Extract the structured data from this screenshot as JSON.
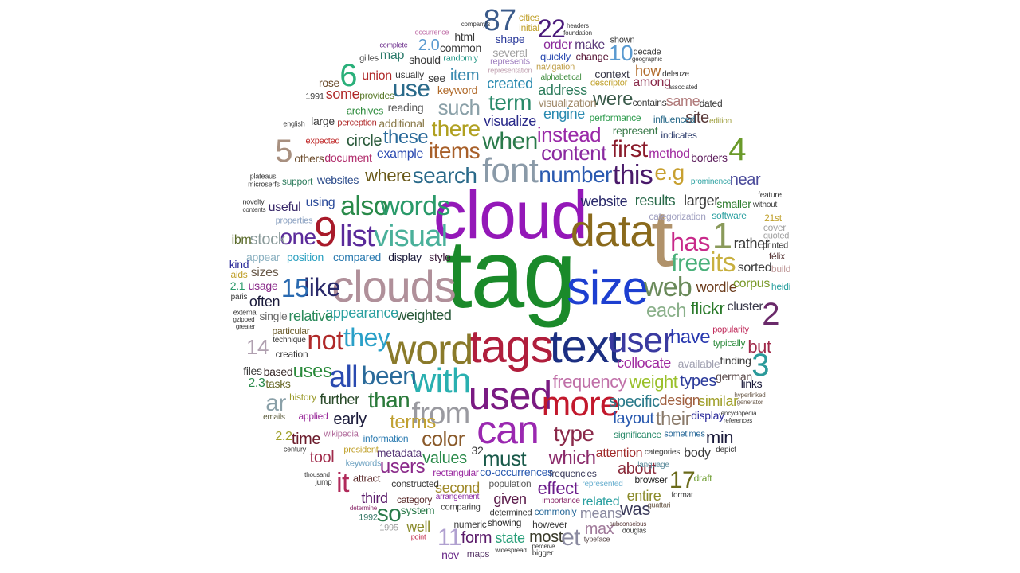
{
  "words": [
    {
      "text": "tag",
      "color": "#1a8a2a"
    },
    {
      "text": "cloud",
      "color": "#9418b8"
    },
    {
      "text": "tags",
      "color": "#b01e3c"
    },
    {
      "text": "text",
      "color": "#1c2f82"
    },
    {
      "text": "size",
      "color": "#1d3fd0"
    },
    {
      "text": "data",
      "color": "#8a6a1c"
    },
    {
      "text": "t",
      "color": "#b0926a"
    },
    {
      "text": "clouds",
      "color": "#b0909a"
    },
    {
      "text": "word",
      "color": "#8a7a2a"
    },
    {
      "text": "used",
      "color": "#7a1a82"
    },
    {
      "text": "can",
      "color": "#9a28b0"
    },
    {
      "text": "font",
      "color": "#8a9aa8"
    },
    {
      "text": "more",
      "color": "#c2182c"
    },
    {
      "text": "with",
      "color": "#2ab0b0"
    },
    {
      "text": "user",
      "color": "#3a3aa0"
    },
    {
      "text": "visual",
      "color": "#4ab09a"
    },
    {
      "text": "list",
      "color": "#5a2a9a"
    },
    {
      "text": "9",
      "color": "#a81a2a"
    },
    {
      "text": "also",
      "color": "#2a8a4a"
    },
    {
      "text": "words",
      "color": "#2a9a6a"
    },
    {
      "text": "web",
      "color": "#6a8a5a"
    },
    {
      "text": "has",
      "color": "#c82a8a"
    },
    {
      "text": "free",
      "color": "#4ab07a"
    },
    {
      "text": "its",
      "color": "#c8b040"
    },
    {
      "text": "1",
      "color": "#8a9a5a"
    },
    {
      "text": "from",
      "color": "#9a9aa0"
    },
    {
      "text": "all",
      "color": "#2a4ab0"
    },
    {
      "text": "been",
      "color": "#2a6a9a"
    },
    {
      "text": "they",
      "color": "#2aa0c8"
    },
    {
      "text": "not",
      "color": "#b02a2a"
    },
    {
      "text": "like",
      "color": "#2a2a6a"
    },
    {
      "text": "one",
      "color": "#5a2a9a"
    },
    {
      "text": "15",
      "color": "#2a6ab0"
    },
    {
      "text": "search",
      "color": "#2a6a8a"
    },
    {
      "text": "items",
      "color": "#a8602a"
    },
    {
      "text": "this",
      "color": "#4a1a6a"
    },
    {
      "text": "e.g",
      "color": "#c8a030"
    },
    {
      "text": "first",
      "color": "#8a1a2a"
    },
    {
      "text": "number",
      "color": "#2a5ab0"
    },
    {
      "text": "content",
      "color": "#8a2aa0"
    },
    {
      "text": "instead",
      "color": "#9a2aa8"
    },
    {
      "text": "when",
      "color": "#2a7a4a"
    },
    {
      "text": "5",
      "color": "#a89080"
    },
    {
      "text": "6",
      "color": "#2ab07a"
    },
    {
      "text": "4",
      "color": "#6a9a2a"
    },
    {
      "text": "2",
      "color": "#6a2a6a"
    },
    {
      "text": "3",
      "color": "#2a9a9a"
    },
    {
      "text": "87",
      "color": "#3a5a8a"
    },
    {
      "text": "22",
      "color": "#4a1a7a"
    },
    {
      "text": "10",
      "color": "#5a9ad0"
    },
    {
      "text": "17",
      "color": "#6a6a1a"
    },
    {
      "text": "14",
      "color": "#b0a0b0"
    },
    {
      "text": "11",
      "color": "#b0a0d0"
    },
    {
      "text": "than",
      "color": "#2a7a3a"
    },
    {
      "text": "terms",
      "color": "#c0a030"
    },
    {
      "text": "color",
      "color": "#8a5a2a"
    },
    {
      "text": "must",
      "color": "#1a5a4a"
    },
    {
      "text": "type",
      "color": "#8a2a4a"
    },
    {
      "text": "which",
      "color": "#8a2a6a"
    },
    {
      "text": "frequency",
      "color": "#c070a8"
    },
    {
      "text": "weight",
      "color": "#9ac02a"
    },
    {
      "text": "specific",
      "color": "#2a7a8a"
    },
    {
      "text": "layout",
      "color": "#2a5ab0"
    },
    {
      "text": "their",
      "color": "#8a7a6a"
    },
    {
      "text": "design",
      "color": "#a06040"
    },
    {
      "text": "similar",
      "color": "#a0a02a"
    },
    {
      "text": "types",
      "color": "#2a3a9a"
    },
    {
      "text": "collocate",
      "color": "#a02aa0"
    },
    {
      "text": "have",
      "color": "#2a3ab0"
    },
    {
      "text": "but",
      "color": "#a02a4a"
    },
    {
      "text": "weighted",
      "color": "#2a5a3a"
    },
    {
      "text": "appearance",
      "color": "#2aa0a0"
    },
    {
      "text": "relative",
      "color": "#2a8a5a"
    },
    {
      "text": "often",
      "color": "#1a1a3a"
    },
    {
      "text": "uses",
      "color": "#2a8a3a"
    },
    {
      "text": "ar",
      "color": "#8aa0a8"
    },
    {
      "text": "early",
      "color": "#1a1a3a"
    },
    {
      "text": "further",
      "color": "#2a4a2a"
    },
    {
      "text": "time",
      "color": "#6a1a2a"
    },
    {
      "text": "tool",
      "color": "#a02a4a"
    },
    {
      "text": "it",
      "color": "#b02a5a"
    },
    {
      "text": "so",
      "color": "#2a7a4a"
    },
    {
      "text": "well",
      "color": "#8a8a2a"
    },
    {
      "text": "users",
      "color": "#8a2a8a"
    },
    {
      "text": "values",
      "color": "#2a8a4a"
    },
    {
      "text": "second",
      "color": "#a08a2a"
    },
    {
      "text": "third",
      "color": "#5a1a6a"
    },
    {
      "text": "given",
      "color": "#5a1a4a"
    },
    {
      "text": "effect",
      "color": "#6a1a8a"
    },
    {
      "text": "et",
      "color": "#8a8aa0"
    },
    {
      "text": "most",
      "color": "#3a3a2a"
    },
    {
      "text": "form",
      "color": "#5a1a6a"
    },
    {
      "text": "state",
      "color": "#2aa07a"
    },
    {
      "text": "max",
      "color": "#a07a9a"
    },
    {
      "text": "was",
      "color": "#3a3a5a"
    },
    {
      "text": "means",
      "color": "#8a8aa0"
    },
    {
      "text": "entire",
      "color": "#8a8a2a"
    },
    {
      "text": "related",
      "color": "#2aa0a0"
    },
    {
      "text": "about",
      "color": "#8a2a3a"
    },
    {
      "text": "attention",
      "color": "#a02a2a"
    },
    {
      "text": "body",
      "color": "#3a3a3a"
    },
    {
      "text": "min",
      "color": "#1a1a3a"
    },
    {
      "text": "display",
      "color": "#2a2a9a"
    },
    {
      "text": "finding",
      "color": "#3a3a3a"
    },
    {
      "text": "links",
      "color": "#1a1a3a"
    },
    {
      "text": "german",
      "color": "#5a4a4a"
    },
    {
      "text": "cluster",
      "color": "#3a3a4a"
    },
    {
      "text": "flickr",
      "color": "#2a7a2a"
    },
    {
      "text": "each",
      "color": "#8ab08a"
    },
    {
      "text": "wordle",
      "color": "#6a3a1a"
    },
    {
      "text": "corpus",
      "color": "#7a9a2a"
    },
    {
      "text": "heidi",
      "color": "#2aa0a0"
    },
    {
      "text": "félix",
      "color": "#5a3a3a"
    },
    {
      "text": "sorted",
      "color": "#3a3a3a"
    },
    {
      "text": "rather",
      "color": "#3a3a3a"
    },
    {
      "text": "larger",
      "color": "#3a3a3a"
    },
    {
      "text": "smaller",
      "color": "#2a7a2a"
    },
    {
      "text": "near",
      "color": "#4a4a9a"
    },
    {
      "text": "results",
      "color": "#2a6a4a"
    },
    {
      "text": "website",
      "color": "#2a2a6a"
    },
    {
      "text": "software",
      "color": "#2aa0a0"
    },
    {
      "text": "categorization",
      "color": "#a0a0c0"
    },
    {
      "text": "were",
      "color": "#3a5a4a"
    },
    {
      "text": "site",
      "color": "#5a3a3a"
    },
    {
      "text": "same",
      "color": "#b07a7a"
    },
    {
      "text": "among",
      "color": "#8a2a4a"
    },
    {
      "text": "how",
      "color": "#b06a2a"
    },
    {
      "text": "context",
      "color": "#3a3a4a"
    },
    {
      "text": "method",
      "color": "#a02aa0"
    },
    {
      "text": "borders",
      "color": "#5a1a5a"
    },
    {
      "text": "represent",
      "color": "#3a7a4a"
    },
    {
      "text": "indicates",
      "color": "#2a3a6a"
    },
    {
      "text": "influenced",
      "color": "#2a6a8a"
    },
    {
      "text": "contains",
      "color": "#3a3a3a"
    },
    {
      "text": "dated",
      "color": "#3a3a3a"
    },
    {
      "text": "edition",
      "color": "#a0a040"
    },
    {
      "text": "performance",
      "color": "#2a9a4a"
    },
    {
      "text": "prominence",
      "color": "#2aa0a0"
    },
    {
      "text": "engine",
      "color": "#2a8ab0"
    },
    {
      "text": "address",
      "color": "#2a7a5a"
    },
    {
      "text": "visualization",
      "color": "#a08a6a"
    },
    {
      "text": "term",
      "color": "#2a8a6a"
    },
    {
      "text": "created",
      "color": "#2a8ab0"
    },
    {
      "text": "visualize",
      "color": "#2a2a8a"
    },
    {
      "text": "such",
      "color": "#8aa0a8"
    },
    {
      "text": "there",
      "color": "#b0a020"
    },
    {
      "text": "keyword",
      "color": "#b06a2a"
    },
    {
      "text": "item",
      "color": "#3a8ab0"
    },
    {
      "text": "use",
      "color": "#2a6a8a"
    },
    {
      "text": "these",
      "color": "#2a6a9a"
    },
    {
      "text": "circle",
      "color": "#2a5a3a"
    },
    {
      "text": "example",
      "color": "#2a4ab0"
    },
    {
      "text": "where",
      "color": "#6a5a1a"
    },
    {
      "text": "websites",
      "color": "#2a4a8a"
    },
    {
      "text": "using",
      "color": "#2a4a9a"
    },
    {
      "text": "useful",
      "color": "#3a2a6a"
    },
    {
      "text": "stock",
      "color": "#8a9a9a"
    },
    {
      "text": "ibm",
      "color": "#5a6a2a"
    },
    {
      "text": "position",
      "color": "#2aa0c0"
    },
    {
      "text": "compared",
      "color": "#2a7ab0"
    },
    {
      "text": "display",
      "color": "#1a1a3a"
    },
    {
      "text": "style",
      "color": "#3a1a3a"
    },
    {
      "text": "appear",
      "color": "#8ab0c0"
    },
    {
      "text": "sizes",
      "color": "#6a5a4a"
    },
    {
      "text": "usage",
      "color": "#8a2a8a"
    },
    {
      "text": "single",
      "color": "#6a6a6a"
    },
    {
      "text": "creation",
      "color": "#3a3a3a"
    },
    {
      "text": "technique",
      "color": "#3a3a3a"
    },
    {
      "text": "particular",
      "color": "#6a5a2a"
    },
    {
      "text": "based",
      "color": "#3a2a2a"
    },
    {
      "text": "tasks",
      "color": "#6a6a2a"
    },
    {
      "text": "files",
      "color": "#3a3a3a"
    },
    {
      "text": "history",
      "color": "#9a9a2a"
    },
    {
      "text": "applied",
      "color": "#9a2a9a"
    },
    {
      "text": "emails",
      "color": "#5a5a3a"
    },
    {
      "text": "wikipedia",
      "color": "#b06a9a"
    },
    {
      "text": "information",
      "color": "#2a7ab0"
    },
    {
      "text": "president",
      "color": "#c0a02a"
    },
    {
      "text": "metadata",
      "color": "#5a3a7a"
    },
    {
      "text": "keywords",
      "color": "#6aa0c0"
    },
    {
      "text": "attract",
      "color": "#5a2a2a"
    },
    {
      "text": "constructed",
      "color": "#3a3a3a"
    },
    {
      "text": "category",
      "color": "#5a2a2a"
    },
    {
      "text": "system",
      "color": "#2a7a4a"
    },
    {
      "text": "arrangement",
      "color": "#8a2aa0"
    },
    {
      "text": "rectangular",
      "color": "#9a2aa0"
    },
    {
      "text": "co-occurrences",
      "color": "#2a5ab0"
    },
    {
      "text": "population",
      "color": "#5a5a5a"
    },
    {
      "text": "frequencies",
      "color": "#3a3a5a"
    },
    {
      "text": "importance",
      "color": "#8a2a6a"
    },
    {
      "text": "commonly",
      "color": "#2a6a9a"
    },
    {
      "text": "showing",
      "color": "#2a2a2a"
    },
    {
      "text": "determined",
      "color": "#3a3a3a"
    },
    {
      "text": "however",
      "color": "#3a3a3a"
    },
    {
      "text": "numeric",
      "color": "#3a3a3a"
    },
    {
      "text": "comparing",
      "color": "#3a3a3a"
    },
    {
      "text": "represented",
      "color": "#6ab0d0"
    },
    {
      "text": "language",
      "color": "#5a8a9a"
    },
    {
      "text": "browser",
      "color": "#1a1a1a"
    },
    {
      "text": "categories",
      "color": "#3a3a3a"
    },
    {
      "text": "sometimes",
      "color": "#2a6a9a"
    },
    {
      "text": "significance",
      "color": "#2a8a6a"
    },
    {
      "text": "available",
      "color": "#a0a0b0"
    },
    {
      "text": "popularity",
      "color": "#c02a5a"
    },
    {
      "text": "typically",
      "color": "#2a8a3a"
    },
    {
      "text": "feature",
      "color": "#3a3a3a"
    },
    {
      "text": "without",
      "color": "#3a3a3a"
    },
    {
      "text": "21st",
      "color": "#c0a02a"
    },
    {
      "text": "cover",
      "color": "#a0a0a0"
    },
    {
      "text": "quoted",
      "color": "#a0a0a0"
    },
    {
      "text": "printed",
      "color": "#3a3a3a"
    },
    {
      "text": "build",
      "color": "#c09a9a"
    },
    {
      "text": "hyperlinked",
      "color": "#6a5a4a"
    },
    {
      "text": "generator",
      "color": "#6a5a4a"
    },
    {
      "text": "encyclopedia",
      "color": "#3a3a3a"
    },
    {
      "text": "references",
      "color": "#3a3a3a"
    },
    {
      "text": "depict",
      "color": "#3a3a3a"
    },
    {
      "text": "draft",
      "color": "#6a9a2a"
    },
    {
      "text": "format",
      "color": "#3a3a3a"
    },
    {
      "text": "guattari",
      "color": "#6a5a4a"
    },
    {
      "text": "subconscious",
      "color": "#5a3a3a"
    },
    {
      "text": "douglas",
      "color": "#3a3a3a"
    },
    {
      "text": "typeface",
      "color": "#5a4a4a"
    },
    {
      "text": "bigger",
      "color": "#3a3a3a"
    },
    {
      "text": "perceive",
      "color": "#3a3a3a"
    },
    {
      "text": "widespread",
      "color": "#3a3a3a"
    },
    {
      "text": "maps",
      "color": "#5a3a6a"
    },
    {
      "text": "nov",
      "color": "#6a2a8a"
    },
    {
      "text": "point",
      "color": "#c02a4a"
    },
    {
      "text": "1995",
      "color": "#a0a0a0"
    },
    {
      "text": "1992",
      "color": "#3a7a6a"
    },
    {
      "text": "determine",
      "color": "#8a2a6a"
    },
    {
      "text": "thousand",
      "color": "#3a3a3a"
    },
    {
      "text": "jump",
      "color": "#3a3a3a"
    },
    {
      "text": "century",
      "color": "#3a3a3a"
    },
    {
      "text": "2.2",
      "color": "#a0a02a"
    },
    {
      "text": "2.3",
      "color": "#2a8a4a"
    },
    {
      "text": "2.1",
      "color": "#2a9a6a"
    },
    {
      "text": "2.0",
      "color": "#5a9ad0"
    },
    {
      "text": "32",
      "color": "#3a3a3a"
    },
    {
      "text": "paris",
      "color": "#3a3a3a"
    },
    {
      "text": "external",
      "color": "#3a3a3a"
    },
    {
      "text": "gzipped",
      "color": "#3a3a3a"
    },
    {
      "text": "greater",
      "color": "#3a3a3a"
    },
    {
      "text": "kind",
      "color": "#2a2a9a"
    },
    {
      "text": "aids",
      "color": "#c0a02a"
    },
    {
      "text": "properties",
      "color": "#8aa0c0"
    },
    {
      "text": "novelty",
      "color": "#3a3a3a"
    },
    {
      "text": "contents",
      "color": "#3a3a3a"
    },
    {
      "text": "plateaus",
      "color": "#3a3a3a"
    },
    {
      "text": "microserfs",
      "color": "#3a3a3a"
    },
    {
      "text": "support",
      "color": "#2a7a5a"
    },
    {
      "text": "others",
      "color": "#6a4a2a"
    },
    {
      "text": "document",
      "color": "#b02a6a"
    },
    {
      "text": "expected",
      "color": "#c02a2a"
    },
    {
      "text": "english",
      "color": "#3a3a3a"
    },
    {
      "text": "large",
      "color": "#3a3a3a"
    },
    {
      "text": "perception",
      "color": "#b02a2a"
    },
    {
      "text": "additional",
      "color": "#8a7a4a"
    },
    {
      "text": "archives",
      "color": "#2a8a3a"
    },
    {
      "text": "reading",
      "color": "#5a5a5a"
    },
    {
      "text": "1991",
      "color": "#3a3a3a"
    },
    {
      "text": "some",
      "color": "#b02a2a"
    },
    {
      "text": "provides",
      "color": "#5a7a2a"
    },
    {
      "text": "rose",
      "color": "#6a4a2a"
    },
    {
      "text": "union",
      "color": "#b02a2a"
    },
    {
      "text": "usually",
      "color": "#3a3a3a"
    },
    {
      "text": "see",
      "color": "#3a3a3a"
    },
    {
      "text": "gilles",
      "color": "#3a3a3a"
    },
    {
      "text": "map",
      "color": "#2a7a6a"
    },
    {
      "text": "should",
      "color": "#3a3a3a"
    },
    {
      "text": "randomly",
      "color": "#2a9a8a"
    },
    {
      "text": "complete",
      "color": "#6a2a8a"
    },
    {
      "text": "occurrence",
      "color": "#c070a8"
    },
    {
      "text": "common",
      "color": "#3a3a3a"
    },
    {
      "text": "html",
      "color": "#3a3a3a"
    },
    {
      "text": "company's",
      "color": "#3a3a3a"
    },
    {
      "text": "shape",
      "color": "#2a3a9a"
    },
    {
      "text": "several",
      "color": "#a0a0a0"
    },
    {
      "text": "represents",
      "color": "#a080c0"
    },
    {
      "text": "representation",
      "color": "#c0a0b0"
    },
    {
      "text": "cities",
      "color": "#c0a02a"
    },
    {
      "text": "initial",
      "color": "#c0a02a"
    },
    {
      "text": "headers",
      "color": "#3a3a3a"
    },
    {
      "text": "foundation",
      "color": "#3a3a3a"
    },
    {
      "text": "order",
      "color": "#8a2a9a"
    },
    {
      "text": "make",
      "color": "#5a3a7a"
    },
    {
      "text": "quickly",
      "color": "#2a4ab0"
    },
    {
      "text": "change",
      "color": "#5a1a3a"
    },
    {
      "text": "navigation",
      "color": "#c0a04a"
    },
    {
      "text": "alphabetical",
      "color": "#3a8a3a"
    },
    {
      "text": "descriptor",
      "color": "#c0a02a"
    },
    {
      "text": "shown",
      "color": "#3a3a3a"
    },
    {
      "text": "decade",
      "color": "#3a3a3a"
    },
    {
      "text": "geographic",
      "color": "#3a3a3a"
    },
    {
      "text": "deleuze",
      "color": "#3a3a3a"
    },
    {
      "text": "associated",
      "color": "#3a3a3a"
    }
  ]
}
